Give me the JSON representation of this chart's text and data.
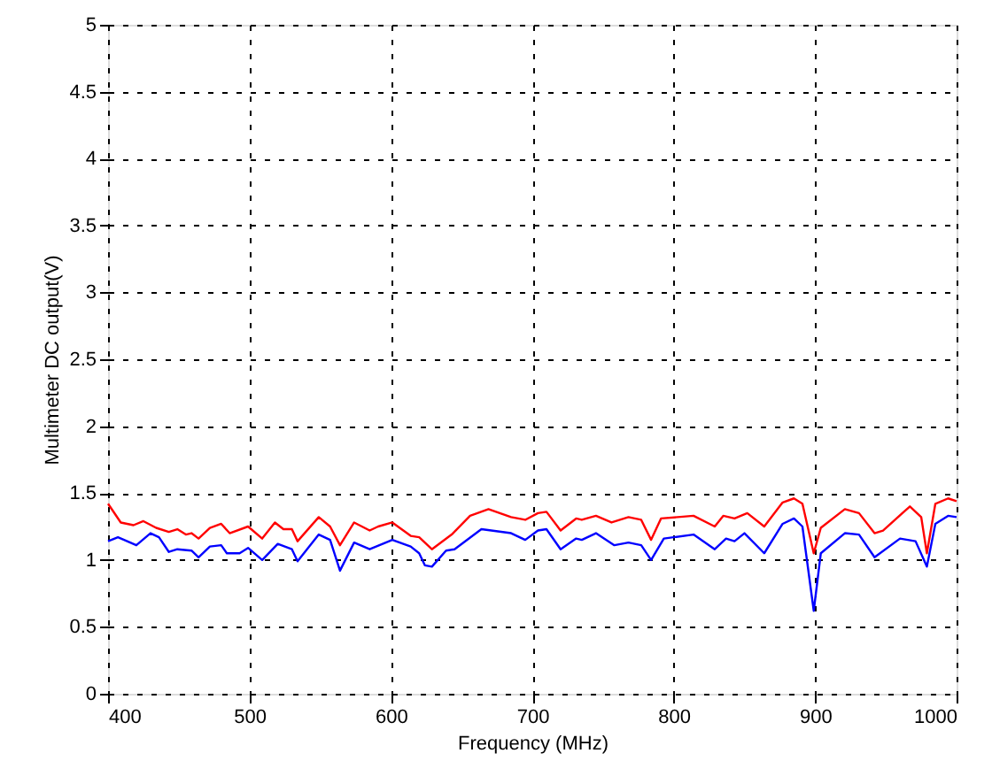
{
  "chart_data": {
    "type": "line",
    "xlabel": "Frequency (MHz)",
    "ylabel": "Multimeter DC output(V)",
    "xlim": [
      400,
      1000
    ],
    "xticks": [
      400,
      500,
      600,
      700,
      800,
      900,
      1000
    ],
    "ylim": [
      0,
      5
    ],
    "yticks": [
      0,
      0.5,
      1,
      1.5,
      2,
      2.5,
      3,
      3.5,
      4,
      4.5,
      5
    ],
    "grid": true,
    "line_style": "solid",
    "marker": "none",
    "series": [
      {
        "color": "#ff0000",
        "x": [
          400,
          409,
          418,
          425,
          434,
          443,
          449,
          455,
          459,
          464,
          472,
          480,
          486,
          499,
          509,
          518,
          524,
          530,
          534,
          549,
          557,
          564,
          574,
          585,
          591,
          601,
          614,
          620,
          629,
          643,
          656,
          669,
          685,
          695,
          704,
          710,
          720,
          731,
          735,
          745,
          756,
          768,
          777,
          784,
          791,
          814,
          829,
          835,
          843,
          852,
          864,
          877,
          885,
          891,
          899,
          904,
          921,
          931,
          942,
          948,
          967,
          975,
          979,
          985,
          994,
          1000
        ],
        "values": [
          1.42,
          1.28,
          1.26,
          1.29,
          1.24,
          1.21,
          1.23,
          1.19,
          1.2,
          1.16,
          1.24,
          1.27,
          1.2,
          1.25,
          1.16,
          1.28,
          1.23,
          1.23,
          1.14,
          1.32,
          1.25,
          1.11,
          1.28,
          1.22,
          1.25,
          1.28,
          1.18,
          1.17,
          1.08,
          1.19,
          1.33,
          1.38,
          1.32,
          1.3,
          1.35,
          1.36,
          1.22,
          1.31,
          1.3,
          1.33,
          1.28,
          1.32,
          1.3,
          1.15,
          1.31,
          1.33,
          1.25,
          1.33,
          1.31,
          1.35,
          1.25,
          1.43,
          1.46,
          1.42,
          1.05,
          1.24,
          1.38,
          1.35,
          1.2,
          1.22,
          1.4,
          1.32,
          1.05,
          1.42,
          1.46,
          1.44
        ]
      },
      {
        "color": "#0000ff",
        "x": [
          400,
          407,
          420,
          430,
          436,
          443,
          449,
          459,
          464,
          472,
          480,
          484,
          493,
          499,
          509,
          520,
          530,
          534,
          549,
          557,
          564,
          574,
          585,
          601,
          614,
          620,
          624,
          629,
          639,
          645,
          664,
          685,
          695,
          704,
          710,
          720,
          731,
          735,
          745,
          758,
          768,
          777,
          784,
          793,
          814,
          829,
          837,
          843,
          850,
          864,
          877,
          885,
          891,
          899,
          904,
          921,
          931,
          942,
          960,
          971,
          979,
          985,
          994,
          1000
        ],
        "values": [
          1.14,
          1.17,
          1.11,
          1.2,
          1.17,
          1.06,
          1.08,
          1.07,
          1.02,
          1.1,
          1.11,
          1.05,
          1.05,
          1.09,
          1.0,
          1.12,
          1.08,
          0.99,
          1.19,
          1.15,
          0.92,
          1.13,
          1.08,
          1.15,
          1.1,
          1.05,
          0.96,
          0.95,
          1.07,
          1.08,
          1.23,
          1.2,
          1.15,
          1.22,
          1.23,
          1.08,
          1.16,
          1.15,
          1.2,
          1.11,
          1.13,
          1.11,
          1.0,
          1.16,
          1.19,
          1.08,
          1.16,
          1.14,
          1.2,
          1.05,
          1.27,
          1.31,
          1.25,
          0.62,
          1.05,
          1.2,
          1.19,
          1.02,
          1.16,
          1.14,
          0.95,
          1.27,
          1.33,
          1.32
        ]
      }
    ]
  }
}
